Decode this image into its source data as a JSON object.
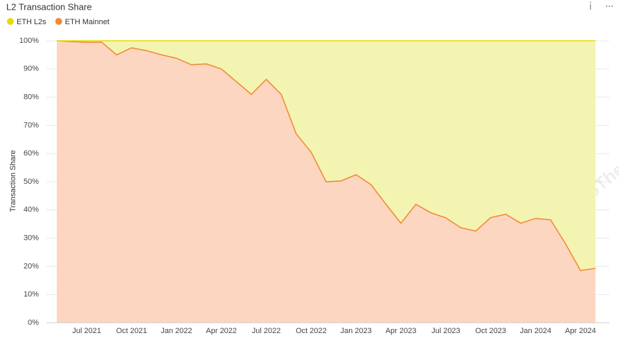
{
  "chart_data": {
    "type": "stacked-area",
    "title": "L2 Transaction Share",
    "y_label": "Transaction Share",
    "watermark": "IntoTheBlock",
    "categories": [
      null,
      null,
      "Jul 2021",
      null,
      null,
      "Oct 2021",
      null,
      null,
      "Jan 2022",
      null,
      null,
      "Apr 2022",
      null,
      null,
      "Jul 2022",
      null,
      null,
      "Oct 2022",
      null,
      null,
      "Jan 2023",
      null,
      null,
      "Apr 2023",
      null,
      null,
      "Jul 2023",
      null,
      null,
      "Oct 2023",
      null,
      null,
      "Jan 2024",
      null,
      null,
      "Apr 2024",
      null
    ],
    "series": [
      {
        "name": "ETH L2s",
        "color": "#e6dc00",
        "fill": "#f3f4b1",
        "values": [
          0,
          0.3,
          0.5,
          0.5,
          5,
          2.5,
          3.5,
          5,
          6.2,
          8.5,
          8.2,
          10,
          14.5,
          19,
          13.7,
          19,
          33,
          39.5,
          50,
          49.7,
          47.5,
          51,
          58,
          64.7,
          58,
          61,
          62.8,
          66.3,
          67.5,
          62.7,
          61.5,
          64.7,
          63,
          63.5,
          72,
          81.5,
          80.7
        ]
      },
      {
        "name": "ETH Mainnet",
        "color": "#f08a35",
        "fill": "#fdd6c1",
        "values": [
          100,
          99.7,
          99.5,
          99.5,
          95,
          97.5,
          96.5,
          95,
          93.8,
          91.5,
          91.8,
          90,
          85.5,
          81,
          86.3,
          81,
          67,
          60.5,
          50,
          50.3,
          52.5,
          49,
          42,
          35.3,
          42,
          39,
          37.2,
          33.7,
          32.5,
          37.3,
          38.5,
          35.3,
          37,
          36.5,
          28,
          18.5,
          19.3
        ]
      }
    ],
    "ylim": [
      0,
      100
    ],
    "yticks": [
      {
        "value": 0,
        "label": "0%"
      },
      {
        "value": 10,
        "label": "10%"
      },
      {
        "value": 20,
        "label": "20%"
      },
      {
        "value": 30,
        "label": "30%"
      },
      {
        "value": 40,
        "label": "40%"
      },
      {
        "value": 50,
        "label": "50%"
      },
      {
        "value": 60,
        "label": "60%"
      },
      {
        "value": 70,
        "label": "70%"
      },
      {
        "value": 80,
        "label": "80%"
      },
      {
        "value": 90,
        "label": "90%"
      },
      {
        "value": 100,
        "label": "100%"
      }
    ],
    "grid": true,
    "legend": "top-left"
  }
}
